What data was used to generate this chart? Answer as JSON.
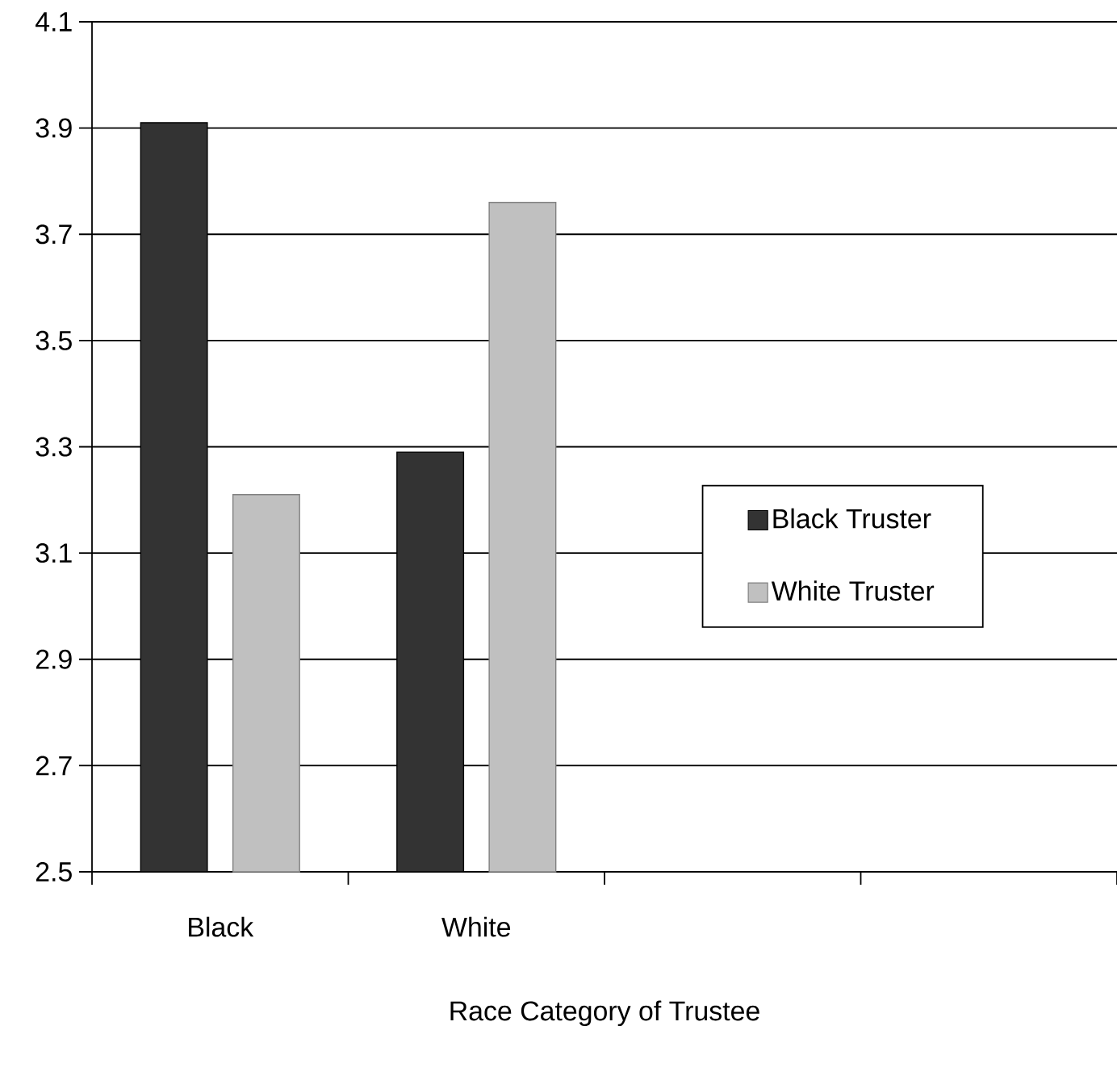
{
  "chart_data": {
    "type": "bar",
    "xlabel": "Race Category of Trustee",
    "categories": [
      "Black",
      "White",
      null,
      null
    ],
    "series": [
      {
        "name": "Black Truster",
        "color": "#333333",
        "values": [
          3.91,
          3.29,
          null,
          null
        ]
      },
      {
        "name": "White Truster",
        "color": "#c0c0c0",
        "values": [
          3.21,
          3.76,
          null,
          null
        ]
      }
    ],
    "ylim": [
      2.5,
      4.1
    ],
    "yticks": [
      2.5,
      2.7,
      2.9,
      3.1,
      3.3,
      3.5,
      3.7,
      3.9,
      4.1
    ],
    "grid": "y",
    "legend": "right"
  }
}
